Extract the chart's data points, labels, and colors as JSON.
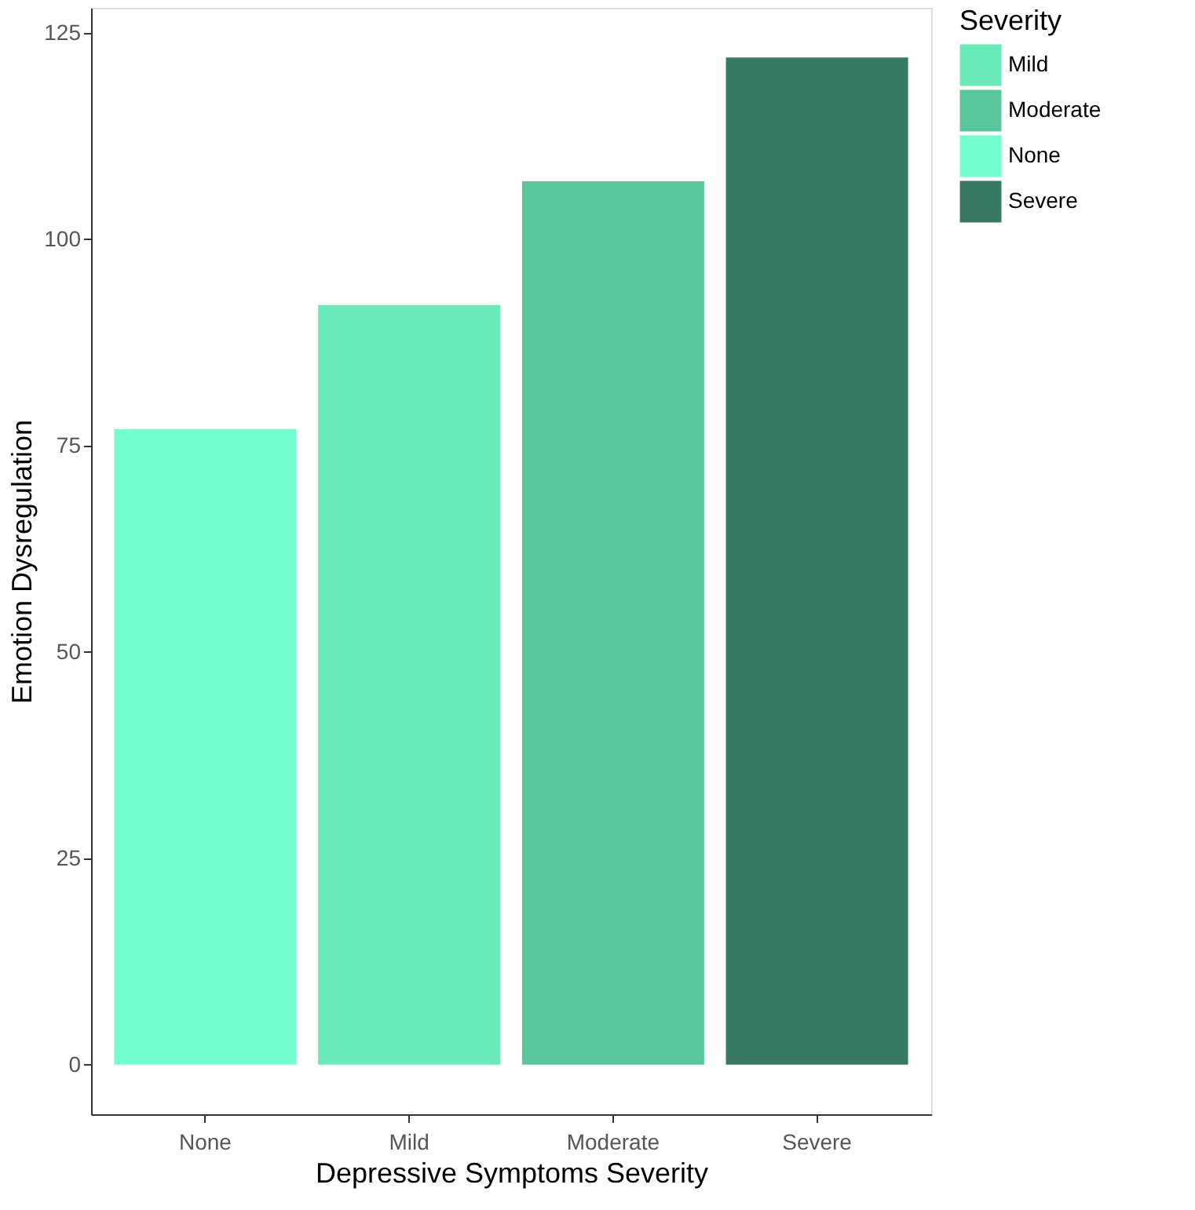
{
  "chart_data": {
    "type": "bar",
    "xlabel": "Depressive Symptoms Severity",
    "ylabel": "Emotion Dysregulation",
    "legend_title": "Severity",
    "legend": "right",
    "grid": false,
    "categories": [
      "None",
      "Mild",
      "Moderate",
      "Severe"
    ],
    "series": [
      {
        "name": "Mild",
        "color": "#6aeab8",
        "values": [
          null,
          92,
          null,
          null
        ]
      },
      {
        "name": "Moderate",
        "color": "#59c69b",
        "values": [
          null,
          null,
          107,
          null
        ]
      },
      {
        "name": "None",
        "color": "#73ffcd",
        "values": [
          77,
          null,
          null,
          null
        ]
      },
      {
        "name": "Severe",
        "color": "#377a61",
        "values": [
          null,
          null,
          null,
          122
        ]
      }
    ],
    "ylim": [
      -6,
      128
    ],
    "yticks": [
      0,
      25,
      50,
      75,
      100,
      125
    ]
  }
}
